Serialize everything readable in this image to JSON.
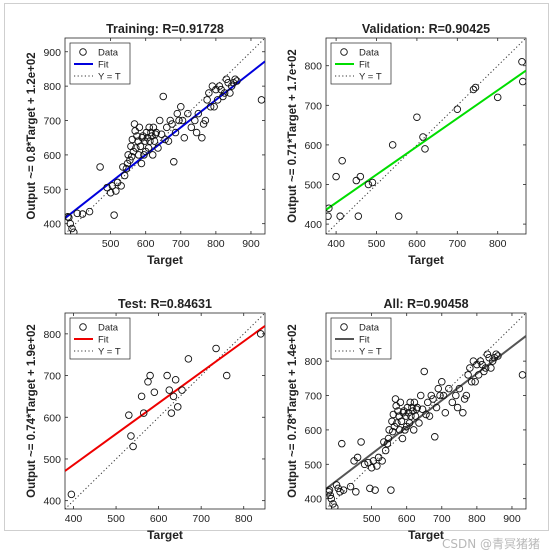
{
  "chart_data": [
    {
      "type": "scatter",
      "title": "Training: R=0.91728",
      "xlabel": "Target",
      "ylabel": "Output ~= 0.8*Target + 1.2e+02",
      "xlim": [
        370,
        940
      ],
      "ylim": [
        370,
        940
      ],
      "xticks": [
        500,
        600,
        700,
        800,
        900
      ],
      "yticks": [
        400,
        500,
        600,
        700,
        800,
        900
      ],
      "fit": {
        "slope": 0.8,
        "intercept": 120,
        "color": "#0000dd"
      },
      "legend": [
        "Data",
        "Fit",
        "Y = T"
      ],
      "legend_position": "top-left",
      "points": [
        [
          378,
          420
        ],
        [
          381,
          418
        ],
        [
          385,
          400
        ],
        [
          390,
          386
        ],
        [
          395,
          375
        ],
        [
          405,
          430
        ],
        [
          420,
          428
        ],
        [
          440,
          435
        ],
        [
          470,
          565
        ],
        [
          490,
          505
        ],
        [
          500,
          490
        ],
        [
          505,
          510
        ],
        [
          510,
          425
        ],
        [
          515,
          495
        ],
        [
          520,
          520
        ],
        [
          530,
          510
        ],
        [
          535,
          565
        ],
        [
          540,
          540
        ],
        [
          545,
          560
        ],
        [
          548,
          575
        ],
        [
          550,
          600
        ],
        [
          555,
          585
        ],
        [
          558,
          625
        ],
        [
          560,
          595
        ],
        [
          562,
          645
        ],
        [
          565,
          610
        ],
        [
          568,
          690
        ],
        [
          570,
          670
        ],
        [
          572,
          620
        ],
        [
          575,
          655
        ],
        [
          578,
          640
        ],
        [
          580,
          600
        ],
        [
          582,
          680
        ],
        [
          585,
          625
        ],
        [
          588,
          575
        ],
        [
          590,
          650
        ],
        [
          592,
          655
        ],
        [
          595,
          600
        ],
        [
          598,
          640
        ],
        [
          600,
          610
        ],
        [
          602,
          665
        ],
        [
          605,
          650
        ],
        [
          608,
          620
        ],
        [
          610,
          680
        ],
        [
          612,
          640
        ],
        [
          615,
          665
        ],
        [
          618,
          655
        ],
        [
          620,
          600
        ],
        [
          622,
          680
        ],
        [
          625,
          640
        ],
        [
          628,
          660
        ],
        [
          630,
          665
        ],
        [
          635,
          620
        ],
        [
          640,
          700
        ],
        [
          645,
          660
        ],
        [
          650,
          770
        ],
        [
          655,
          645
        ],
        [
          660,
          680
        ],
        [
          665,
          640
        ],
        [
          670,
          700
        ],
        [
          675,
          690
        ],
        [
          680,
          580
        ],
        [
          685,
          665
        ],
        [
          690,
          720
        ],
        [
          695,
          700
        ],
        [
          700,
          740
        ],
        [
          705,
          700
        ],
        [
          710,
          650
        ],
        [
          720,
          720
        ],
        [
          730,
          680
        ],
        [
          740,
          700
        ],
        [
          745,
          665
        ],
        [
          750,
          720
        ],
        [
          760,
          650
        ],
        [
          765,
          690
        ],
        [
          770,
          700
        ],
        [
          775,
          760
        ],
        [
          780,
          780
        ],
        [
          785,
          740
        ],
        [
          790,
          800
        ],
        [
          795,
          740
        ],
        [
          800,
          790
        ],
        [
          805,
          760
        ],
        [
          810,
          800
        ],
        [
          815,
          790
        ],
        [
          820,
          770
        ],
        [
          825,
          780
        ],
        [
          830,
          820
        ],
        [
          835,
          810
        ],
        [
          840,
          780
        ],
        [
          845,
          800
        ],
        [
          850,
          810
        ],
        [
          855,
          820
        ],
        [
          860,
          815
        ],
        [
          930,
          760
        ]
      ]
    },
    {
      "type": "scatter",
      "title": "Validation: R=0.90425",
      "xlabel": "Target",
      "ylabel": "Output ~= 0.71*Target + 1.7e+02",
      "xlim": [
        375,
        870
      ],
      "ylim": [
        375,
        870
      ],
      "xticks": [
        400,
        500,
        600,
        700,
        800
      ],
      "yticks": [
        400,
        500,
        600,
        700,
        800
      ],
      "fit": {
        "slope": 0.71,
        "intercept": 170,
        "color": "#00dd00"
      },
      "legend": [
        "Data",
        "Fit",
        "Y = T"
      ],
      "legend_position": "top-left",
      "points": [
        [
          380,
          420
        ],
        [
          382,
          440
        ],
        [
          400,
          520
        ],
        [
          410,
          420
        ],
        [
          415,
          560
        ],
        [
          450,
          510
        ],
        [
          455,
          420
        ],
        [
          460,
          520
        ],
        [
          480,
          500
        ],
        [
          490,
          505
        ],
        [
          540,
          600
        ],
        [
          555,
          420
        ],
        [
          600,
          670
        ],
        [
          615,
          620
        ],
        [
          620,
          590
        ],
        [
          700,
          690
        ],
        [
          740,
          740
        ],
        [
          745,
          745
        ],
        [
          800,
          720
        ],
        [
          860,
          810
        ],
        [
          862,
          760
        ]
      ]
    },
    {
      "type": "scatter",
      "title": "Test: R=0.84631",
      "xlabel": "Target",
      "ylabel": "Output ~= 0.74*Target + 1.9e+02",
      "xlim": [
        380,
        850
      ],
      "ylim": [
        380,
        850
      ],
      "xticks": [
        400,
        500,
        600,
        700,
        800
      ],
      "yticks": [
        400,
        500,
        600,
        700,
        800
      ],
      "fit": {
        "slope": 0.74,
        "intercept": 190,
        "color": "#ee0000"
      },
      "legend": [
        "Data",
        "Fit",
        "Y = T"
      ],
      "legend_position": "top-left",
      "points": [
        [
          395,
          415
        ],
        [
          530,
          605
        ],
        [
          535,
          555
        ],
        [
          540,
          530
        ],
        [
          560,
          650
        ],
        [
          565,
          610
        ],
        [
          575,
          685
        ],
        [
          580,
          700
        ],
        [
          590,
          660
        ],
        [
          620,
          700
        ],
        [
          625,
          665
        ],
        [
          630,
          610
        ],
        [
          635,
          650
        ],
        [
          640,
          690
        ],
        [
          645,
          625
        ],
        [
          655,
          665
        ],
        [
          670,
          740
        ],
        [
          735,
          765
        ],
        [
          760,
          700
        ],
        [
          840,
          800
        ]
      ]
    },
    {
      "type": "scatter",
      "title": "All: R=0.90458",
      "xlabel": "Target",
      "ylabel": "Output ~= 0.78*Target + 1.4e+02",
      "xlim": [
        370,
        940
      ],
      "ylim": [
        370,
        940
      ],
      "xticks": [
        500,
        600,
        700,
        800,
        900
      ],
      "yticks": [
        400,
        500,
        600,
        700,
        800
      ],
      "fit": {
        "slope": 0.78,
        "intercept": 140,
        "color": "#555555"
      },
      "legend": [
        "Data",
        "Fit",
        "Y = T"
      ],
      "legend_position": "top-left",
      "points": [
        [
          378,
          420
        ],
        [
          380,
          425
        ],
        [
          382,
          410
        ],
        [
          385,
          400
        ],
        [
          390,
          385
        ],
        [
          395,
          375
        ],
        [
          400,
          440
        ],
        [
          405,
          430
        ],
        [
          410,
          420
        ],
        [
          415,
          560
        ],
        [
          420,
          425
        ],
        [
          440,
          435
        ],
        [
          450,
          510
        ],
        [
          455,
          420
        ],
        [
          460,
          520
        ],
        [
          470,
          565
        ],
        [
          480,
          500
        ],
        [
          490,
          505
        ],
        [
          495,
          430
        ],
        [
          500,
          490
        ],
        [
          505,
          510
        ],
        [
          510,
          425
        ],
        [
          515,
          495
        ],
        [
          520,
          520
        ],
        [
          530,
          510
        ],
        [
          535,
          565
        ],
        [
          540,
          540
        ],
        [
          545,
          560
        ],
        [
          548,
          575
        ],
        [
          550,
          600
        ],
        [
          555,
          425
        ],
        [
          558,
          625
        ],
        [
          560,
          595
        ],
        [
          562,
          645
        ],
        [
          565,
          610
        ],
        [
          568,
          690
        ],
        [
          570,
          670
        ],
        [
          572,
          620
        ],
        [
          575,
          655
        ],
        [
          578,
          640
        ],
        [
          580,
          600
        ],
        [
          582,
          680
        ],
        [
          585,
          625
        ],
        [
          588,
          575
        ],
        [
          590,
          650
        ],
        [
          592,
          655
        ],
        [
          595,
          600
        ],
        [
          598,
          640
        ],
        [
          600,
          610
        ],
        [
          602,
          665
        ],
        [
          605,
          650
        ],
        [
          608,
          620
        ],
        [
          610,
          680
        ],
        [
          612,
          640
        ],
        [
          615,
          665
        ],
        [
          618,
          655
        ],
        [
          620,
          600
        ],
        [
          622,
          680
        ],
        [
          625,
          640
        ],
        [
          628,
          660
        ],
        [
          630,
          665
        ],
        [
          635,
          620
        ],
        [
          640,
          700
        ],
        [
          645,
          660
        ],
        [
          650,
          770
        ],
        [
          655,
          645
        ],
        [
          660,
          680
        ],
        [
          665,
          640
        ],
        [
          670,
          700
        ],
        [
          675,
          690
        ],
        [
          680,
          580
        ],
        [
          685,
          665
        ],
        [
          690,
          720
        ],
        [
          695,
          700
        ],
        [
          700,
          740
        ],
        [
          705,
          700
        ],
        [
          710,
          650
        ],
        [
          720,
          720
        ],
        [
          730,
          680
        ],
        [
          740,
          700
        ],
        [
          745,
          665
        ],
        [
          750,
          720
        ],
        [
          760,
          650
        ],
        [
          765,
          690
        ],
        [
          770,
          700
        ],
        [
          775,
          760
        ],
        [
          780,
          780
        ],
        [
          785,
          740
        ],
        [
          790,
          800
        ],
        [
          795,
          740
        ],
        [
          800,
          790
        ],
        [
          805,
          760
        ],
        [
          810,
          800
        ],
        [
          815,
          790
        ],
        [
          820,
          770
        ],
        [
          825,
          780
        ],
        [
          830,
          820
        ],
        [
          835,
          810
        ],
        [
          840,
          780
        ],
        [
          845,
          800
        ],
        [
          850,
          810
        ],
        [
          855,
          820
        ],
        [
          860,
          815
        ],
        [
          930,
          760
        ]
      ]
    }
  ],
  "watermark": "CSDN @青冥猪猪"
}
